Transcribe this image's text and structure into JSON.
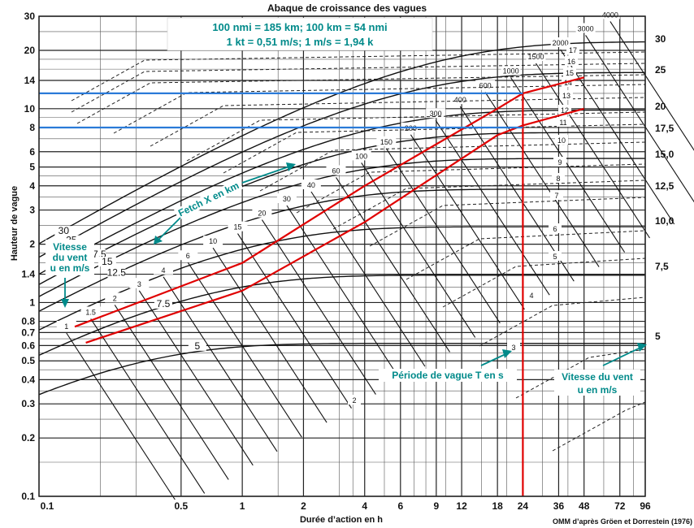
{
  "chart_data": {
    "type": "nomogram",
    "title": "Abaque de croissance des vagues",
    "xlabel": "Durée d’action en h",
    "ylabel": "Hauteur de vague",
    "x_scale": "log",
    "y_scale": "log",
    "xlim": [
      0.1,
      96
    ],
    "ylim": [
      0.1,
      30
    ],
    "x_ticks": [
      0.1,
      0.5,
      1,
      2,
      4,
      6,
      9,
      12,
      18,
      24,
      36,
      48,
      72,
      96
    ],
    "x_tick_labels": [
      "0.1",
      "0.5",
      "1",
      "2",
      "4",
      "6",
      "9",
      "12",
      "18",
      "24",
      "36",
      "48",
      "72",
      "96"
    ],
    "y_ticks": [
      0.1,
      0.2,
      0.3,
      0.4,
      0.5,
      0.6,
      0.7,
      0.8,
      1,
      1.4,
      2,
      3,
      4,
      5,
      6,
      8,
      10,
      14,
      20,
      30
    ],
    "y_tick_labels": [
      "0.1",
      "0.2",
      "0.3",
      "0.4",
      "0.5",
      "0.6",
      "0.7",
      "0.8",
      "1",
      "1.4",
      "2",
      "3",
      "4",
      "5",
      "6",
      "8",
      "10",
      "14",
      "20",
      "30"
    ],
    "conversion_note": [
      "100 nmi = 185 km; 100 km = 54 nmi",
      "1 kt = 0,51 m/s; 1 m/s = 1,94 k"
    ],
    "source": "OMM d’après Gröen et Dorrestein (1976)",
    "wind_speed_curves_m_s": [
      5,
      7.5,
      10,
      12.5,
      15,
      17.5,
      20,
      25,
      30
    ],
    "right_wind_labels": [
      "30",
      "25",
      "20",
      "17,5",
      "15,0",
      "12,5",
      "10,0",
      "7,5",
      "5"
    ],
    "left_wind_labels": [
      "30",
      "25",
      "20",
      "17.5",
      "15",
      "12.5",
      "10",
      "7.5",
      "5"
    ],
    "fetch_km": [
      1,
      1.5,
      2,
      3,
      4,
      6,
      10,
      15,
      20,
      30,
      40,
      60,
      100,
      150,
      200,
      300,
      400,
      600,
      1000,
      1500,
      2000,
      3000,
      4000
    ],
    "fetch_labels": [
      "1",
      "1.5",
      "2",
      "3",
      "4",
      "6",
      "10",
      "15",
      "20",
      "30",
      "40",
      "60",
      "100",
      "150",
      "200",
      "300",
      "400",
      "600",
      "1000",
      "1500",
      "2000",
      "3000",
      "4000"
    ],
    "wave_period_s": [
      2,
      3,
      4,
      5,
      6,
      7,
      8,
      9,
      10,
      11,
      12,
      13,
      14,
      15,
      16,
      17
    ],
    "annotations": {
      "wind_left": [
        "Vitesse",
        "du vent",
        "u en m/s"
      ],
      "fetch": "Fetch X en km",
      "period": "Période de vague T en s",
      "wind_right": [
        "Vitesse du vent",
        "u en m/s"
      ]
    },
    "highlight_lines": [
      {
        "color": "#e00000",
        "points": [
          [
            0.15,
            0.75
          ],
          [
            1,
            1.6
          ],
          [
            4,
            4.0
          ],
          [
            18,
            10.0
          ],
          [
            24,
            12.0
          ],
          [
            48,
            14.5
          ]
        ]
      },
      {
        "color": "#e00000",
        "points": [
          [
            0.17,
            0.62
          ],
          [
            1,
            1.15
          ],
          [
            4,
            2.6
          ],
          [
            18,
            7.3
          ],
          [
            24,
            8.2
          ],
          [
            48,
            10.0
          ]
        ]
      },
      {
        "color": "#e00000",
        "points": [
          [
            24,
            12.0
          ],
          [
            24,
            0.1
          ]
        ]
      },
      {
        "color": "#2a7ad8",
        "points": [
          [
            0.1,
            12.0
          ],
          [
            24,
            12.0
          ]
        ]
      },
      {
        "color": "#2a7ad8",
        "points": [
          [
            0.1,
            8.0
          ],
          [
            24,
            8.0
          ]
        ]
      }
    ]
  }
}
